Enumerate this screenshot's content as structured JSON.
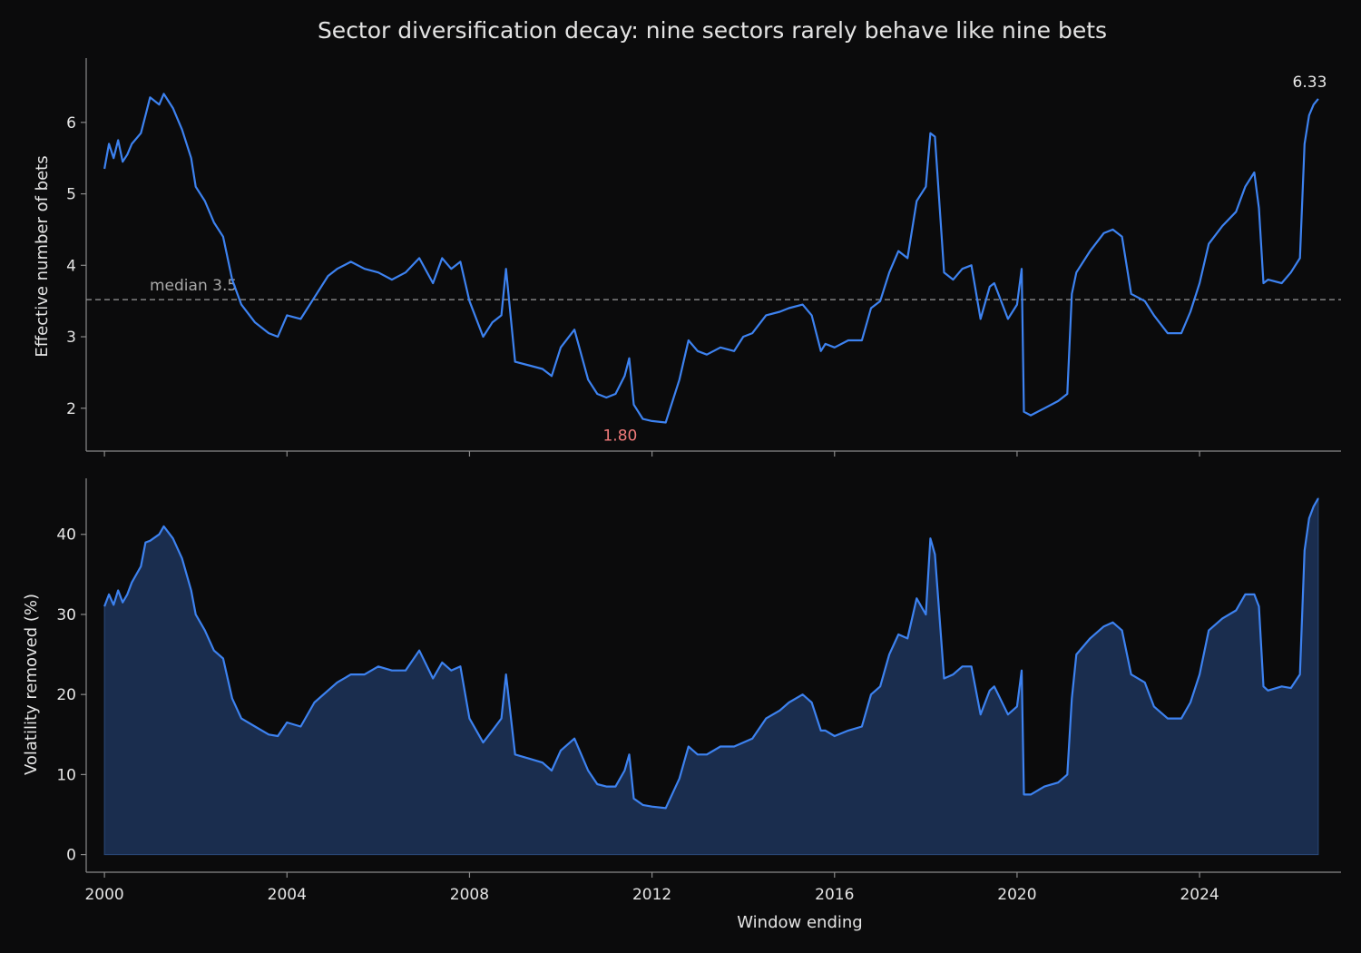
{
  "title": "Sector diversification decay: nine sectors rarely behave like nine bets",
  "colors": {
    "background": "#0b0b0c",
    "line": "#3d82f0",
    "fill": "#1a2d4e",
    "median_line": "#9a9a9a",
    "min_annotation": "#f07a7a",
    "max_annotation": "#e8e8e8",
    "axis": "#8a8a8a",
    "text": "#e4e4e4"
  },
  "chart_data": [
    {
      "type": "line",
      "panel": "top",
      "ylabel": "Effective number of bets",
      "xlim": [
        1999.6,
        2027.1
      ],
      "ylim": [
        1.4,
        6.9
      ],
      "yticks": [
        2,
        3,
        4,
        5,
        6
      ],
      "ytick_labels": [
        "2",
        "3",
        "4",
        "5",
        "6"
      ],
      "reference_line": {
        "value": 3.52,
        "label": "median 3.5",
        "style": "dashed"
      },
      "annotations": [
        {
          "label": "1.80",
          "x": 2011.3,
          "y": 1.8,
          "kind": "min"
        },
        {
          "label": "6.33",
          "x": 2025.3,
          "y": 6.33,
          "kind": "max"
        }
      ],
      "series": [
        {
          "x": [
            2000.0,
            2000.1,
            2000.2,
            2000.3,
            2000.4,
            2000.5,
            2000.6,
            2000.8,
            2000.9,
            2001.0,
            2001.2,
            2001.3,
            2001.5,
            2001.7,
            2001.9,
            2002.0,
            2002.2,
            2002.4,
            2002.6,
            2002.8,
            2003.0,
            2003.3,
            2003.6,
            2003.8,
            2004.0,
            2004.3,
            2004.6,
            2004.9,
            2005.1,
            2005.4,
            2005.7,
            2006.0,
            2006.3,
            2006.6,
            2006.9,
            2007.2,
            2007.4,
            2007.6,
            2007.8,
            2008.0,
            2008.3,
            2008.5,
            2008.7,
            2008.8,
            2009.0,
            2009.3,
            2009.6,
            2009.8,
            2010.0,
            2010.3,
            2010.6,
            2010.8,
            2011.0,
            2011.2,
            2011.4,
            2011.5,
            2011.6,
            2011.8,
            2012.0,
            2012.3,
            2012.6,
            2012.8,
            2013.0,
            2013.2,
            2013.5,
            2013.8,
            2014.0,
            2014.2,
            2014.5,
            2014.8,
            2015.0,
            2015.3,
            2015.5,
            2015.7,
            2015.8,
            2016.0,
            2016.3,
            2016.6,
            2016.8,
            2017.0,
            2017.2,
            2017.4,
            2017.6,
            2017.8,
            2018.0,
            2018.1,
            2018.2,
            2018.4,
            2018.6,
            2018.8,
            2019.0,
            2019.2,
            2019.4,
            2019.5,
            2019.8,
            2020.0,
            2020.1,
            2020.15,
            2020.3,
            2020.6,
            2020.9,
            2021.1,
            2021.2,
            2021.3,
            2021.6,
            2021.9,
            2022.1,
            2022.3,
            2022.5,
            2022.8,
            2023.0,
            2023.3,
            2023.6,
            2023.8,
            2024.0,
            2024.2,
            2024.5,
            2024.8,
            2025.0,
            2025.2,
            2025.3,
            2025.4,
            2025.5,
            2025.8,
            2026.0,
            2026.2,
            2026.3,
            2026.4,
            2026.5,
            2026.6
          ],
          "y": [
            5.35,
            5.7,
            5.5,
            5.75,
            5.45,
            5.55,
            5.7,
            5.85,
            6.1,
            6.35,
            6.25,
            6.4,
            6.2,
            5.9,
            5.5,
            5.1,
            4.9,
            4.6,
            4.4,
            3.8,
            3.45,
            3.2,
            3.05,
            3.0,
            3.3,
            3.25,
            3.55,
            3.85,
            3.95,
            4.05,
            3.95,
            3.9,
            3.8,
            3.9,
            4.1,
            3.75,
            4.1,
            3.95,
            4.05,
            3.5,
            3.0,
            3.2,
            3.3,
            3.95,
            2.65,
            2.6,
            2.55,
            2.45,
            2.85,
            3.1,
            2.4,
            2.2,
            2.15,
            2.2,
            2.45,
            2.7,
            2.05,
            1.85,
            1.82,
            1.8,
            2.4,
            2.95,
            2.8,
            2.75,
            2.85,
            2.8,
            3.0,
            3.05,
            3.3,
            3.35,
            3.4,
            3.45,
            3.3,
            2.8,
            2.9,
            2.85,
            2.95,
            2.95,
            3.4,
            3.5,
            3.9,
            4.2,
            4.1,
            4.9,
            5.1,
            5.85,
            5.8,
            3.9,
            3.8,
            3.95,
            4.0,
            3.25,
            3.7,
            3.75,
            3.25,
            3.45,
            3.95,
            1.95,
            1.9,
            2.0,
            2.1,
            2.2,
            3.6,
            3.9,
            4.2,
            4.45,
            4.5,
            4.4,
            3.6,
            3.5,
            3.3,
            3.05,
            3.05,
            3.35,
            3.75,
            4.3,
            4.55,
            4.75,
            5.1,
            5.3,
            4.8,
            3.75,
            3.8,
            3.75,
            3.9,
            4.1,
            5.7,
            6.1,
            6.25,
            6.33
          ]
        }
      ]
    },
    {
      "type": "area",
      "panel": "bottom",
      "xlabel": "Window ending",
      "ylabel": "Volatility removed (%)",
      "xlim": [
        1999.6,
        2027.1
      ],
      "ylim": [
        -2.2,
        47
      ],
      "xticks": [
        2000,
        2004,
        2008,
        2012,
        2016,
        2020,
        2024
      ],
      "xtick_labels": [
        "2000",
        "2004",
        "2008",
        "2012",
        "2016",
        "2020",
        "2024"
      ],
      "yticks": [
        0,
        10,
        20,
        30,
        40
      ],
      "ytick_labels": [
        "0",
        "10",
        "20",
        "30",
        "40"
      ],
      "series": [
        {
          "x": [
            2000.0,
            2000.1,
            2000.2,
            2000.3,
            2000.4,
            2000.5,
            2000.6,
            2000.8,
            2000.9,
            2001.0,
            2001.2,
            2001.3,
            2001.5,
            2001.7,
            2001.9,
            2002.0,
            2002.2,
            2002.4,
            2002.6,
            2002.8,
            2003.0,
            2003.3,
            2003.6,
            2003.8,
            2004.0,
            2004.3,
            2004.6,
            2004.9,
            2005.1,
            2005.4,
            2005.7,
            2006.0,
            2006.3,
            2006.6,
            2006.9,
            2007.2,
            2007.4,
            2007.6,
            2007.8,
            2008.0,
            2008.3,
            2008.5,
            2008.7,
            2008.8,
            2009.0,
            2009.3,
            2009.6,
            2009.8,
            2010.0,
            2010.3,
            2010.6,
            2010.8,
            2011.0,
            2011.2,
            2011.4,
            2011.5,
            2011.6,
            2011.8,
            2012.0,
            2012.3,
            2012.6,
            2012.8,
            2013.0,
            2013.2,
            2013.5,
            2013.8,
            2014.0,
            2014.2,
            2014.5,
            2014.8,
            2015.0,
            2015.3,
            2015.5,
            2015.7,
            2015.8,
            2016.0,
            2016.3,
            2016.6,
            2016.8,
            2017.0,
            2017.2,
            2017.4,
            2017.6,
            2017.8,
            2018.0,
            2018.1,
            2018.2,
            2018.4,
            2018.6,
            2018.8,
            2019.0,
            2019.2,
            2019.4,
            2019.5,
            2019.8,
            2020.0,
            2020.1,
            2020.15,
            2020.3,
            2020.6,
            2020.9,
            2021.1,
            2021.2,
            2021.3,
            2021.6,
            2021.9,
            2022.1,
            2022.3,
            2022.5,
            2022.8,
            2023.0,
            2023.3,
            2023.6,
            2023.8,
            2024.0,
            2024.2,
            2024.5,
            2024.8,
            2025.0,
            2025.2,
            2025.3,
            2025.4,
            2025.5,
            2025.8,
            2026.0,
            2026.2,
            2026.3,
            2026.4,
            2026.5,
            2026.6
          ],
          "values": [
            31.0,
            32.5,
            31.2,
            33.0,
            31.5,
            32.5,
            34.0,
            36.0,
            39.0,
            39.2,
            40.0,
            41.0,
            39.5,
            37.0,
            33.0,
            30.0,
            28.0,
            25.5,
            24.5,
            19.5,
            17.0,
            16.0,
            15.0,
            14.8,
            16.5,
            16.0,
            19.0,
            20.5,
            21.5,
            22.5,
            22.5,
            23.5,
            23.0,
            23.0,
            25.5,
            22.0,
            24.0,
            23.0,
            23.5,
            17.0,
            14.0,
            15.5,
            17.0,
            22.5,
            12.5,
            12.0,
            11.5,
            10.5,
            13.0,
            14.5,
            10.5,
            8.8,
            8.5,
            8.5,
            10.5,
            12.5,
            7.0,
            6.2,
            6.0,
            5.8,
            9.5,
            13.5,
            12.5,
            12.5,
            13.5,
            13.5,
            14.0,
            14.5,
            17.0,
            18.0,
            19.0,
            20.0,
            19.0,
            15.5,
            15.5,
            14.8,
            15.5,
            16.0,
            20.0,
            21.0,
            25.0,
            27.5,
            27.0,
            32.0,
            30.0,
            39.5,
            37.5,
            22.0,
            22.5,
            23.5,
            23.5,
            17.5,
            20.5,
            21.0,
            17.5,
            18.5,
            23.0,
            7.5,
            7.5,
            8.5,
            9.0,
            10.0,
            19.5,
            25.0,
            27.0,
            28.5,
            29.0,
            28.0,
            22.5,
            21.5,
            18.5,
            17.0,
            17.0,
            19.0,
            22.5,
            28.0,
            29.5,
            30.5,
            32.5,
            32.5,
            31.0,
            21.0,
            20.5,
            21.0,
            20.8,
            22.5,
            38.0,
            42.0,
            43.5,
            44.5
          ]
        }
      ]
    }
  ]
}
